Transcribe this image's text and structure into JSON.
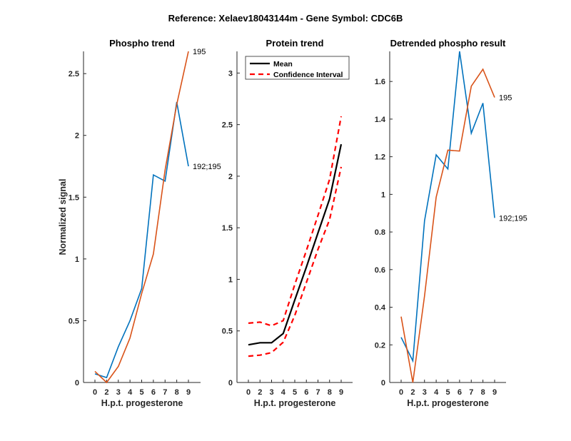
{
  "figure_title": "Reference:  Xelaev18043144m - Gene Symbol:  CDC6B",
  "colors": {
    "blue": "#0072BD",
    "orange": "#D95319",
    "mean": "#000000",
    "ci": "#FF0000",
    "axis": "#262626"
  },
  "chart_data": [
    {
      "type": "line",
      "title": "Phospho trend",
      "xlabel": "H.p.t. progesterone",
      "ylabel": "Normalized signal",
      "categories": [
        "0",
        "2",
        "3",
        "4",
        "5",
        "6",
        "7",
        "8",
        "9"
      ],
      "ylim": [
        0,
        2.68
      ],
      "yticks": [
        0,
        0.5,
        1,
        1.5,
        2,
        2.5
      ],
      "ytick_labels": [
        "0",
        "0.5",
        "1",
        "1.5",
        "2",
        "2.5"
      ],
      "series": [
        {
          "name": "192;195",
          "color": "blue",
          "values": [
            0.07,
            0.04,
            0.29,
            0.5,
            0.76,
            1.68,
            1.63,
            2.27,
            1.75
          ]
        },
        {
          "name": "195",
          "color": "orange",
          "values": [
            0.09,
            0.0,
            0.13,
            0.36,
            0.72,
            1.04,
            1.72,
            2.25,
            2.68
          ]
        }
      ]
    },
    {
      "type": "line",
      "title": "Protein trend",
      "xlabel": "H.p.t. progesterone",
      "ylabel": "",
      "categories": [
        "0",
        "2",
        "3",
        "4",
        "5",
        "6",
        "7",
        "8",
        "9"
      ],
      "ylim": [
        0,
        3.21
      ],
      "yticks": [
        0,
        0.5,
        1,
        1.5,
        2,
        2.5,
        3
      ],
      "ytick_labels": [
        "0",
        "0.5",
        "1",
        "1.5",
        "2",
        "2.5",
        "3"
      ],
      "legend": {
        "placement": "top-left",
        "entries": [
          "Mean",
          "Confidence Interval"
        ]
      },
      "series": [
        {
          "name": "Mean",
          "color": "mean",
          "values": [
            0.365,
            0.385,
            0.385,
            0.475,
            0.8,
            1.12,
            1.45,
            1.78,
            2.31
          ]
        },
        {
          "name": "Confidence Interval upper",
          "color": "ci",
          "dashed": true,
          "values": [
            0.575,
            0.585,
            0.55,
            0.6,
            0.95,
            1.28,
            1.62,
            1.97,
            2.58
          ]
        },
        {
          "name": "Confidence Interval lower",
          "color": "ci",
          "dashed": true,
          "values": [
            0.255,
            0.265,
            0.29,
            0.39,
            0.65,
            0.97,
            1.29,
            1.58,
            2.09
          ]
        }
      ]
    },
    {
      "type": "line",
      "title": "Detrended phospho result",
      "xlabel": "H.p.t. progesterone",
      "ylabel": "",
      "categories": [
        "0",
        "2",
        "3",
        "4",
        "5",
        "6",
        "7",
        "8",
        "9"
      ],
      "ylim": [
        0,
        1.76
      ],
      "yticks": [
        0,
        0.2,
        0.4,
        0.6,
        0.8,
        1,
        1.2,
        1.4,
        1.6
      ],
      "ytick_labels": [
        "0",
        "0.2",
        "0.4",
        "0.6",
        "0.8",
        "1",
        "1.2",
        "1.4",
        "1.6"
      ],
      "series": [
        {
          "name": "192;195",
          "color": "blue",
          "values": [
            0.24,
            0.115,
            0.86,
            1.21,
            1.135,
            1.76,
            1.325,
            1.485,
            0.875
          ]
        },
        {
          "name": "195",
          "color": "orange",
          "values": [
            0.35,
            0.0,
            0.46,
            0.985,
            1.235,
            1.23,
            1.575,
            1.665,
            1.515
          ]
        }
      ]
    }
  ]
}
